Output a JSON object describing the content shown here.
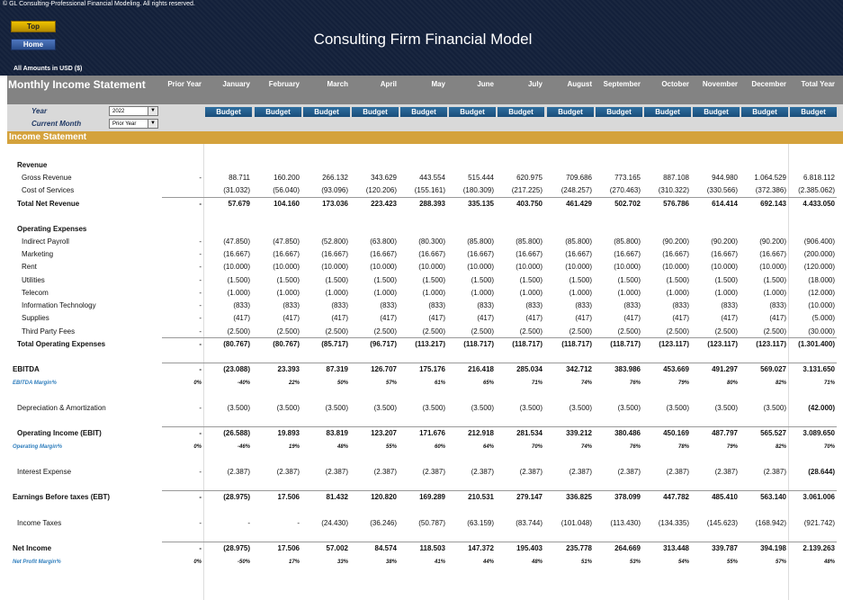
{
  "copyright": "© GL Consulting-Professional Financial Modeling. All rights reserved.",
  "nav": {
    "top": "Top",
    "home": "Home"
  },
  "title": "Consulting Firm Financial Model",
  "amounts_label": "All Amounts in  USD ($)",
  "header": {
    "statement_title": "Monthly Income Statement",
    "columns": [
      "Prior Year",
      "January",
      "February",
      "March",
      "April",
      "May",
      "June",
      "July",
      "August",
      "September",
      "October",
      "November",
      "December",
      "Total Year"
    ]
  },
  "selectors": {
    "year_label": "Year",
    "year_value": "2022",
    "month_label": "Current Month",
    "month_value": "Prior Year",
    "budget_label": "Budget"
  },
  "section_title": "Income Statement",
  "rows": [
    {
      "label": "Revenue",
      "style": "section"
    },
    {
      "label": "Gross Revenue",
      "style": "indent",
      "values": [
        "-",
        "88.711",
        "160.200",
        "266.132",
        "343.629",
        "443.554",
        "515.444",
        "620.975",
        "709.686",
        "773.165",
        "887.108",
        "944.980",
        "1.064.529",
        "6.818.112"
      ]
    },
    {
      "label": "Cost of Services",
      "style": "indent",
      "values": [
        "",
        "(31.032)",
        "(56.040)",
        "(93.096)",
        "(120.206)",
        "(155.161)",
        "(180.309)",
        "(217.225)",
        "(248.257)",
        "(270.463)",
        "(310.322)",
        "(330.566)",
        "(372.386)",
        "(2.385.062)"
      ]
    },
    {
      "label": "Total Net Revenue",
      "style": "total",
      "values": [
        "-",
        "57.679",
        "104.160",
        "173.036",
        "223.423",
        "288.393",
        "335.135",
        "403.750",
        "461.429",
        "502.702",
        "576.786",
        "614.414",
        "692.143",
        "4.433.050"
      ]
    },
    {
      "label": "Operating Expenses",
      "style": "section"
    },
    {
      "label": "Indirect Payroll",
      "style": "indent",
      "values": [
        "-",
        "(47.850)",
        "(47.850)",
        "(52.800)",
        "(63.800)",
        "(80.300)",
        "(85.800)",
        "(85.800)",
        "(85.800)",
        "(85.800)",
        "(90.200)",
        "(90.200)",
        "(90.200)",
        "(906.400)"
      ]
    },
    {
      "label": "Marketing",
      "style": "indent",
      "values": [
        "-",
        "(16.667)",
        "(16.667)",
        "(16.667)",
        "(16.667)",
        "(16.667)",
        "(16.667)",
        "(16.667)",
        "(16.667)",
        "(16.667)",
        "(16.667)",
        "(16.667)",
        "(16.667)",
        "(200.000)"
      ]
    },
    {
      "label": "Rent",
      "style": "indent",
      "values": [
        "-",
        "(10.000)",
        "(10.000)",
        "(10.000)",
        "(10.000)",
        "(10.000)",
        "(10.000)",
        "(10.000)",
        "(10.000)",
        "(10.000)",
        "(10.000)",
        "(10.000)",
        "(10.000)",
        "(120.000)"
      ]
    },
    {
      "label": "Utilities",
      "style": "indent",
      "values": [
        "-",
        "(1.500)",
        "(1.500)",
        "(1.500)",
        "(1.500)",
        "(1.500)",
        "(1.500)",
        "(1.500)",
        "(1.500)",
        "(1.500)",
        "(1.500)",
        "(1.500)",
        "(1.500)",
        "(18.000)"
      ]
    },
    {
      "label": "Telecom",
      "style": "indent",
      "values": [
        "-",
        "(1.000)",
        "(1.000)",
        "(1.000)",
        "(1.000)",
        "(1.000)",
        "(1.000)",
        "(1.000)",
        "(1.000)",
        "(1.000)",
        "(1.000)",
        "(1.000)",
        "(1.000)",
        "(12.000)"
      ]
    },
    {
      "label": "Information Technology",
      "style": "indent",
      "values": [
        "-",
        "(833)",
        "(833)",
        "(833)",
        "(833)",
        "(833)",
        "(833)",
        "(833)",
        "(833)",
        "(833)",
        "(833)",
        "(833)",
        "(833)",
        "(10.000)"
      ]
    },
    {
      "label": "Supplies",
      "style": "indent",
      "values": [
        "-",
        "(417)",
        "(417)",
        "(417)",
        "(417)",
        "(417)",
        "(417)",
        "(417)",
        "(417)",
        "(417)",
        "(417)",
        "(417)",
        "(417)",
        "(5.000)"
      ]
    },
    {
      "label": "Third Party Fees",
      "style": "indent",
      "values": [
        "-",
        "(2.500)",
        "(2.500)",
        "(2.500)",
        "(2.500)",
        "(2.500)",
        "(2.500)",
        "(2.500)",
        "(2.500)",
        "(2.500)",
        "(2.500)",
        "(2.500)",
        "(2.500)",
        "(30.000)"
      ]
    },
    {
      "label": "Total Operating Expenses",
      "style": "total",
      "values": [
        "-",
        "(80.767)",
        "(80.767)",
        "(85.717)",
        "(96.717)",
        "(113.217)",
        "(118.717)",
        "(118.717)",
        "(118.717)",
        "(118.717)",
        "(123.117)",
        "(123.117)",
        "(123.117)",
        "(1.301.400)"
      ]
    },
    {
      "label": "EBITDA",
      "style": "total",
      "values": [
        "-",
        "(23.088)",
        "23.393",
        "87.319",
        "126.707",
        "175.176",
        "216.418",
        "285.034",
        "342.712",
        "383.986",
        "453.669",
        "491.297",
        "569.027",
        "3.131.650"
      ]
    },
    {
      "label": "EBITDA Margin%",
      "style": "margin",
      "values": [
        "0%",
        "-40%",
        "22%",
        "50%",
        "57%",
        "61%",
        "65%",
        "71%",
        "74%",
        "76%",
        "79%",
        "80%",
        "82%",
        "71%"
      ]
    },
    {
      "label": "Depreciation & Amortization",
      "style": "indent",
      "values": [
        "-",
        "(3.500)",
        "(3.500)",
        "(3.500)",
        "(3.500)",
        "(3.500)",
        "(3.500)",
        "(3.500)",
        "(3.500)",
        "(3.500)",
        "(3.500)",
        "(3.500)",
        "(3.500)",
        "(42.000)"
      ]
    },
    {
      "label": "Operating Income (EBIT)",
      "style": "total",
      "values": [
        "-",
        "(26.588)",
        "19.893",
        "83.819",
        "123.207",
        "171.676",
        "212.918",
        "281.534",
        "339.212",
        "380.486",
        "450.169",
        "487.797",
        "565.527",
        "3.089.650"
      ]
    },
    {
      "label": "Operating Margin%",
      "style": "margin",
      "values": [
        "0%",
        "-46%",
        "19%",
        "48%",
        "55%",
        "60%",
        "64%",
        "70%",
        "74%",
        "76%",
        "78%",
        "79%",
        "82%",
        "70%"
      ]
    },
    {
      "label": "Interest Expense",
      "style": "indent",
      "values": [
        "-",
        "(2.387)",
        "(2.387)",
        "(2.387)",
        "(2.387)",
        "(2.387)",
        "(2.387)",
        "(2.387)",
        "(2.387)",
        "(2.387)",
        "(2.387)",
        "(2.387)",
        "(2.387)",
        "(28.644)"
      ]
    },
    {
      "label": "Earnings Before taxes (EBT)",
      "style": "total",
      "values": [
        "-",
        "(28.975)",
        "17.506",
        "81.432",
        "120.820",
        "169.289",
        "210.531",
        "279.147",
        "336.825",
        "378.099",
        "447.782",
        "485.410",
        "563.140",
        "3.061.006"
      ]
    },
    {
      "label": "Income Taxes",
      "style": "indent",
      "values": [
        "-",
        "-",
        "-",
        "(24.430)",
        "(36.246)",
        "(50.787)",
        "(63.159)",
        "(83.744)",
        "(101.048)",
        "(113.430)",
        "(134.335)",
        "(145.623)",
        "(168.942)",
        "(921.742)"
      ]
    },
    {
      "label": "Net Income",
      "style": "total",
      "values": [
        "-",
        "(28.975)",
        "17.506",
        "57.002",
        "84.574",
        "118.503",
        "147.372",
        "195.403",
        "235.778",
        "264.669",
        "313.448",
        "339.787",
        "394.198",
        "2.139.263"
      ]
    },
    {
      "label": "Net Profit Margin%",
      "style": "margin",
      "values": [
        "0%",
        "-50%",
        "17%",
        "33%",
        "38%",
        "41%",
        "44%",
        "48%",
        "51%",
        "53%",
        "54%",
        "55%",
        "57%",
        "48%"
      ]
    }
  ]
}
